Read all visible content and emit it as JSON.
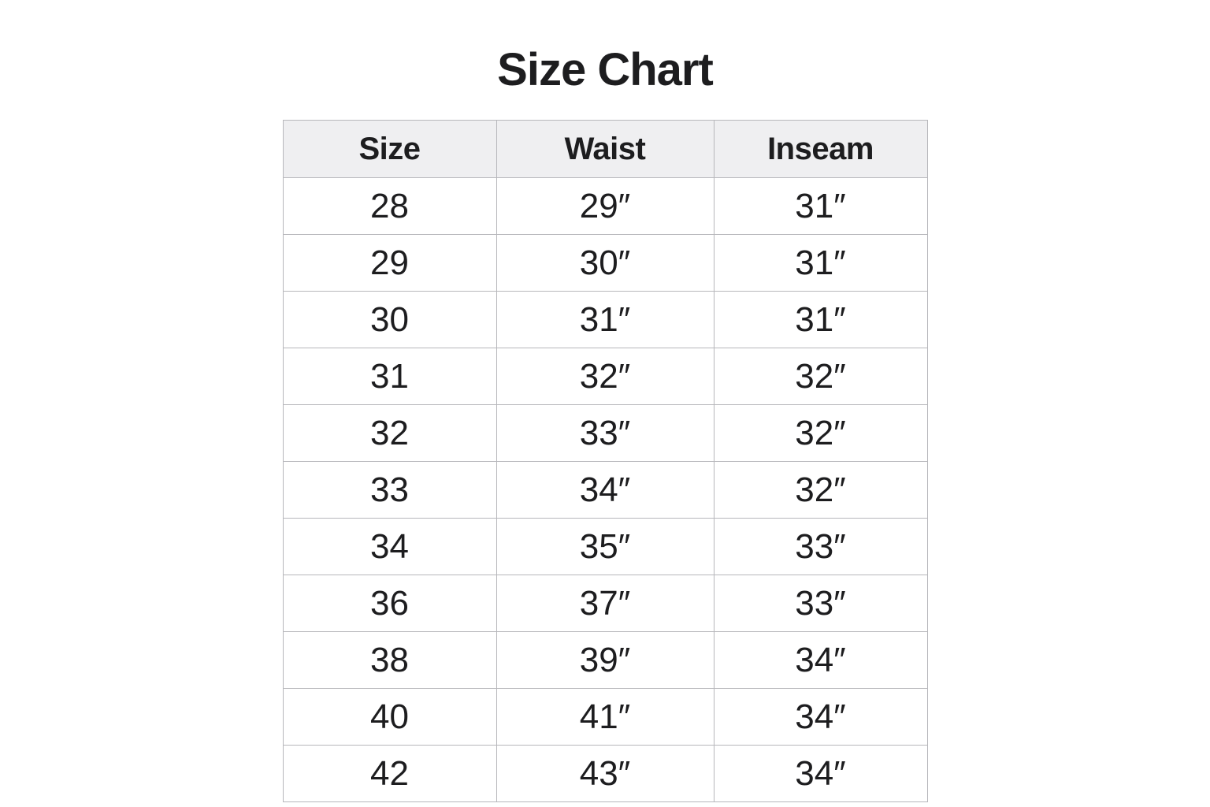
{
  "page": {
    "title": "Size Chart"
  },
  "colors": {
    "background": "#ffffff",
    "header_bg": "#efeff1",
    "border": "#b7b7bb",
    "text": "#1d1d1f"
  },
  "chart_data": {
    "type": "table",
    "title": "Size Chart",
    "columns": [
      "Size",
      "Waist",
      "Inseam"
    ],
    "column_keys": [
      "size",
      "waist",
      "inseam"
    ],
    "rows": [
      [
        "28",
        "29″",
        "31″"
      ],
      [
        "29",
        "30″",
        "31″"
      ],
      [
        "30",
        "31″",
        "31″"
      ],
      [
        "31",
        "32″",
        "32″"
      ],
      [
        "32",
        "33″",
        "32″"
      ],
      [
        "33",
        "34″",
        "32″"
      ],
      [
        "34",
        "35″",
        "33″"
      ],
      [
        "36",
        "37″",
        "33″"
      ],
      [
        "38",
        "39″",
        "34″"
      ],
      [
        "40",
        "41″",
        "34″"
      ],
      [
        "42",
        "43″",
        "34″"
      ]
    ]
  }
}
